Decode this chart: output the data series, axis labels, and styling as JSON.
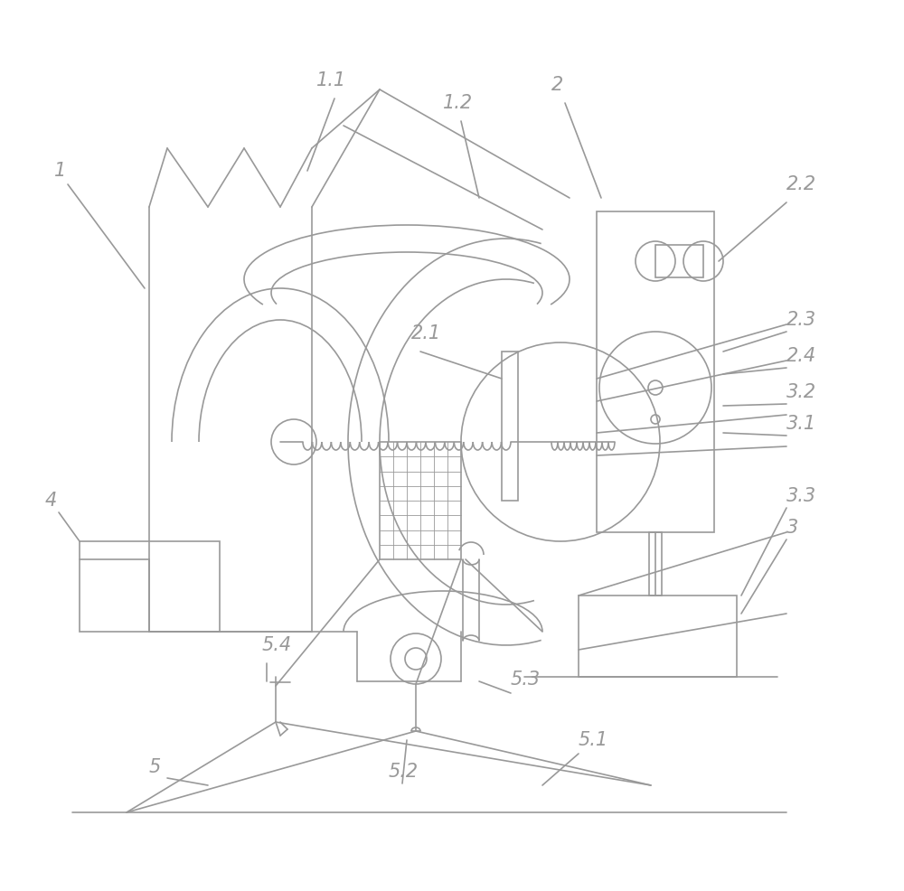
{
  "bg_color": "#ffffff",
  "line_color": "#999999",
  "text_color": "#999999",
  "line_width": 1.2,
  "figsize": [
    10.0,
    9.87
  ],
  "dpi": 100
}
